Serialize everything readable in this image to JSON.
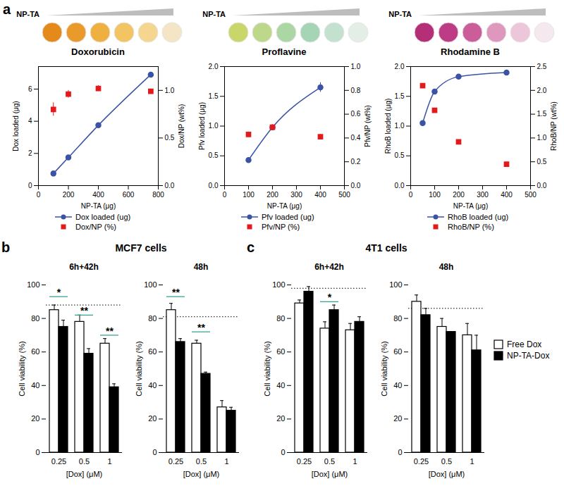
{
  "chart_data": [
    {
      "type": "scatter",
      "panel": "a",
      "well_label": "NP-TA",
      "compound": "Doxorubicin",
      "colors": [
        "#e48a1a",
        "#e99a2a",
        "#eeb040",
        "#f2c463",
        "#f4d690",
        "#f3e5c6"
      ],
      "xlabel": "NP-TA (μg)",
      "ylabel": "Dox loaded (μg)",
      "y2label": "Dox/NP (wt%)",
      "xlim": [
        0,
        800
      ],
      "xticks": [
        0,
        200,
        400,
        600,
        800
      ],
      "ylim": [
        0,
        7.4
      ],
      "yticks": [
        0,
        2,
        4,
        6
      ],
      "y2lim": [
        0,
        1.25
      ],
      "y2ticks": [
        {
          "value": 0,
          "label": "0.0"
        },
        0.5,
        {
          "value": 1,
          "label": "1.0"
        }
      ],
      "x": [
        100,
        200,
        400,
        750
      ],
      "legend": "bottom",
      "series": [
        {
          "name": "Dox loaded (ug)",
          "type": "line",
          "marker": "circle",
          "color": "#3a53a4",
          "values": [
            0.75,
            1.75,
            3.75,
            6.9
          ],
          "errors": [
            0.05,
            0.05,
            0.1,
            0.1
          ]
        },
        {
          "name": "Dox/NP (%)",
          "type": "scatter",
          "marker": "square",
          "color": "#e31a1c",
          "axis": "y2",
          "values": [
            0.8,
            0.96,
            1.02,
            0.99
          ],
          "errors": [
            0.07,
            0.04,
            0.03,
            0.02
          ]
        }
      ]
    },
    {
      "type": "scatter",
      "well_label": "NP-TA",
      "compound": "Proflavine",
      "colors": [
        "#c8d66a",
        "#bdd88a",
        "#acd6a4",
        "#a6d5b6",
        "#c2e1ce",
        "#e2eee6"
      ],
      "xlabel": "NP-TA (μg)",
      "ylabel": "Pfv loaded (μg)",
      "y2label": "Pfv/NP (wt%)",
      "xlim": [
        0,
        500
      ],
      "xticks": [
        0,
        100,
        200,
        300,
        400,
        500
      ],
      "ylim": [
        0,
        2
      ],
      "yticks": [
        {
          "value": 0,
          "label": "0.0"
        },
        0.5,
        {
          "value": 1,
          "label": "1.0"
        },
        1.5,
        {
          "value": 2,
          "label": "2.0"
        }
      ],
      "y2lim": [
        0,
        1
      ],
      "y2ticks": [
        {
          "value": 0,
          "label": "0.0"
        },
        0.2,
        0.4,
        0.6,
        0.8,
        {
          "value": 1,
          "label": "1.0"
        }
      ],
      "x": [
        100,
        200,
        400
      ],
      "legend": "bottom",
      "series": [
        {
          "name": "Pfv loaded (ug)",
          "type": "line",
          "marker": "circle",
          "color": "#3a53a4",
          "values": [
            0.43,
            0.98,
            1.65
          ],
          "errors": [
            0.02,
            0.03,
            0.08
          ]
        },
        {
          "name": "Pfv/NP (%)",
          "type": "scatter",
          "marker": "square",
          "color": "#e31a1c",
          "axis": "y2",
          "values": [
            0.43,
            0.49,
            0.41
          ],
          "errors": [
            0.02,
            0.02,
            0.02
          ]
        }
      ]
    },
    {
      "type": "scatter",
      "well_label": "NP-TA",
      "compound": "Rhodamine B",
      "colors": [
        "#b42e78",
        "#be3c85",
        "#cb5e98",
        "#df98bd",
        "#eec6d9",
        "#f5e8ee"
      ],
      "xlabel": "NP-TA (μg)",
      "ylabel": "RhoB loaded (μg)",
      "y2label": "RhoB/NP (wt%)",
      "xlim": [
        0,
        500
      ],
      "xticks": [
        0,
        100,
        200,
        300,
        400,
        500
      ],
      "ylim": [
        0,
        2
      ],
      "yticks": [
        {
          "value": 0,
          "label": "0.0"
        },
        0.5,
        {
          "value": 1,
          "label": "1.0"
        },
        1.5,
        {
          "value": 2,
          "label": "2.0"
        }
      ],
      "y2lim": [
        0,
        2.5
      ],
      "y2ticks": [
        {
          "value": 0,
          "label": "0.0"
        },
        0.5,
        {
          "value": 1,
          "label": "1.0"
        },
        1.5,
        {
          "value": 2,
          "label": "2.0"
        },
        2.5
      ],
      "x": [
        50,
        100,
        200,
        400
      ],
      "legend": "bottom",
      "series": [
        {
          "name": "RhoB loaded (ug)",
          "type": "line",
          "marker": "circle",
          "color": "#3a53a4",
          "values": [
            1.05,
            1.58,
            1.83,
            1.9
          ]
        },
        {
          "name": "RhoB/NP (%)",
          "type": "scatter",
          "marker": "square",
          "color": "#e31a1c",
          "axis": "y2",
          "values": [
            2.1,
            1.58,
            0.92,
            0.45
          ]
        }
      ]
    },
    {
      "type": "bar",
      "panel": "b",
      "group": "MCF7 cells",
      "title": "6h+42h",
      "xlabel": "[Dox] (μM)",
      "ylabel": "Cell viability (%)",
      "categories": [
        0.25,
        0.5,
        1
      ],
      "ylim": [
        0,
        100
      ],
      "yticks": [
        0,
        20,
        40,
        60,
        80,
        100
      ],
      "legend": "right",
      "series": [
        {
          "name": "Free Dox",
          "color": "#ffffff",
          "values": [
            85,
            78,
            65
          ],
          "errors": [
            3,
            4,
            3
          ]
        },
        {
          "name": "NP-TA-Dox",
          "color": "#000000",
          "values": [
            75,
            59,
            39
          ],
          "errors": [
            4,
            3,
            2
          ]
        }
      ],
      "reference": 88,
      "annotations": [
        {
          "category": 0.25,
          "label": "*",
          "y": 93
        },
        {
          "category": 0.5,
          "label": "**",
          "y": 82
        },
        {
          "category": 1,
          "label": "**",
          "y": 70
        }
      ]
    },
    {
      "type": "bar",
      "group": "MCF7 cells",
      "title": "48h",
      "xlabel": "[Dox] (μM)",
      "ylabel": "Cell viability (%)",
      "categories": [
        0.25,
        0.5,
        1
      ],
      "ylim": [
        0,
        100
      ],
      "yticks": [
        0,
        20,
        40,
        60,
        80,
        100
      ],
      "series": [
        {
          "name": "Free Dox",
          "color": "#ffffff",
          "values": [
            85,
            65,
            27
          ],
          "errors": [
            4,
            2,
            4
          ]
        },
        {
          "name": "NP-TA-Dox",
          "color": "#000000",
          "values": [
            66,
            47,
            25
          ],
          "errors": [
            2,
            1,
            2
          ]
        }
      ],
      "reference": 81,
      "annotations": [
        {
          "category": 0.25,
          "label": "**",
          "y": 93
        },
        {
          "category": 0.5,
          "label": "**",
          "y": 72
        }
      ]
    },
    {
      "type": "bar",
      "panel": "c",
      "group": "4T1 cells",
      "title": "6h+42h",
      "xlabel": "[Dox] (μM)",
      "ylabel": "Cell viability (%)",
      "categories": [
        0.25,
        0.5,
        1
      ],
      "ylim": [
        0,
        100
      ],
      "yticks": [
        0,
        20,
        40,
        60,
        80,
        100
      ],
      "series": [
        {
          "name": "Free Dox",
          "color": "#ffffff",
          "values": [
            89,
            74,
            73
          ],
          "errors": [
            2,
            4,
            4
          ]
        },
        {
          "name": "NP-TA-Dox",
          "color": "#000000",
          "values": [
            96,
            85,
            78
          ],
          "errors": [
            3,
            3,
            3
          ]
        }
      ],
      "reference": 98,
      "annotations": [
        {
          "category": 0.5,
          "label": "*",
          "y": 90
        }
      ]
    },
    {
      "type": "bar",
      "group": "4T1 cells",
      "title": "48h",
      "xlabel": "[Dox] (μM)",
      "ylabel": "Cell viability (%)",
      "categories": [
        0.25,
        0.5,
        1
      ],
      "ylim": [
        0,
        100
      ],
      "yticks": [
        0,
        20,
        40,
        60,
        80,
        100
      ],
      "series": [
        {
          "name": "Free Dox",
          "color": "#ffffff",
          "values": [
            90,
            75,
            70
          ],
          "errors": [
            4,
            5,
            7
          ]
        },
        {
          "name": "NP-TA-Dox",
          "color": "#000000",
          "values": [
            82,
            72,
            61
          ],
          "errors": [
            4,
            0,
            9
          ]
        }
      ],
      "reference": 86,
      "annotations": []
    }
  ]
}
